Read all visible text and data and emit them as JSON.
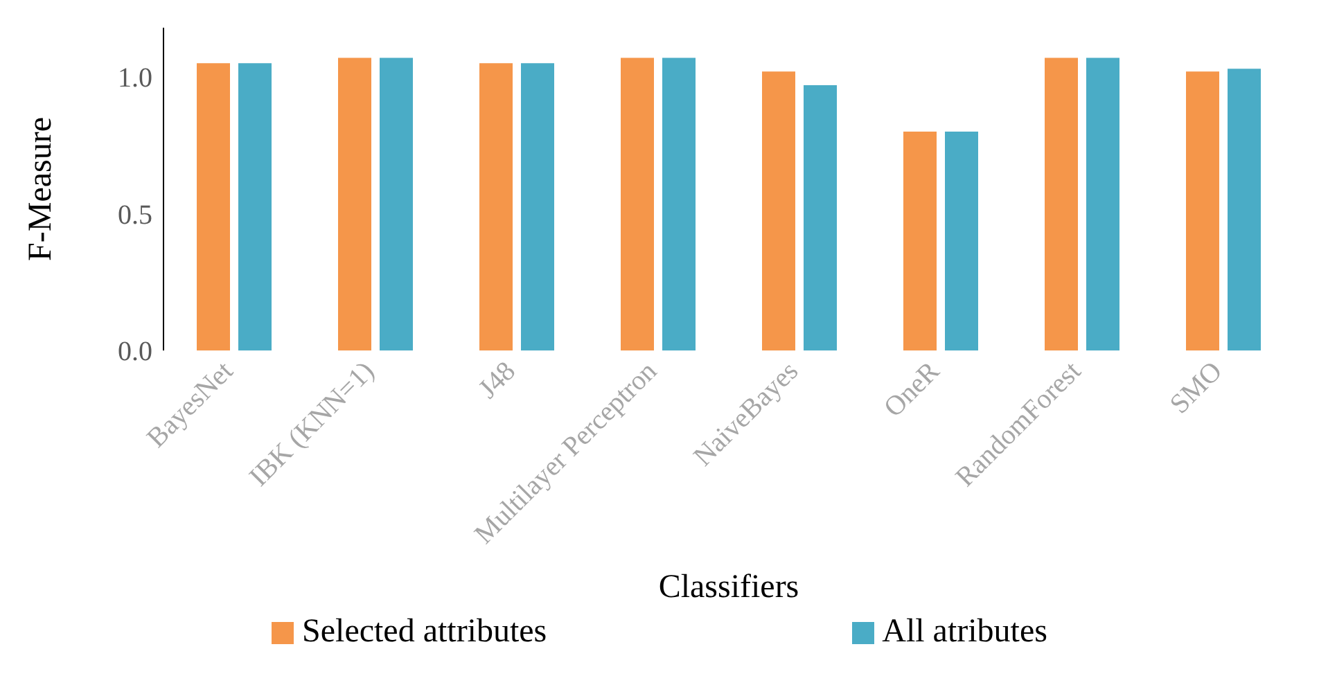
{
  "chart_data": {
    "type": "bar",
    "xlabel": "Classifiers",
    "ylabel": "F-Measure",
    "categories": [
      "BayesNet",
      "IBK (KNN=1)",
      "J48",
      "Multilayer Perceptron",
      "NaiveBayes",
      "OneR",
      "RandomForest",
      "SMO"
    ],
    "series": [
      {
        "name": "Selected attributes",
        "color": "#f5964a",
        "values": [
          1.05,
          1.07,
          1.05,
          1.07,
          1.02,
          0.8,
          1.07,
          1.02
        ]
      },
      {
        "name": "All atributes",
        "color": "#4aacc6",
        "values": [
          1.05,
          1.07,
          1.05,
          1.07,
          0.97,
          0.8,
          1.07,
          1.03
        ]
      }
    ],
    "ylim": [
      0,
      1.18
    ],
    "yticks": [
      {
        "value": 0,
        "label": "0.0"
      },
      0.5,
      {
        "value": 1,
        "label": "1.0"
      }
    ],
    "grid": false,
    "legend": "bottom"
  }
}
